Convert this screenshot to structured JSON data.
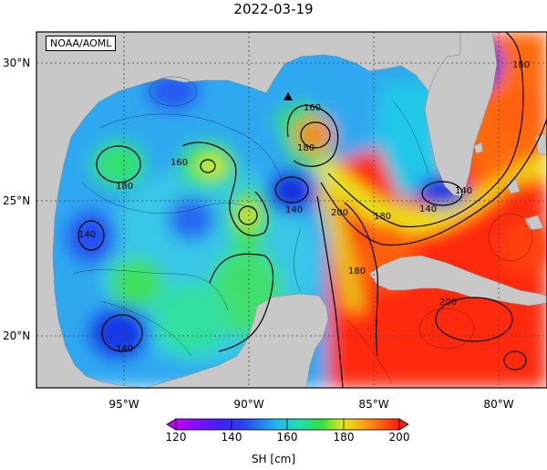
{
  "title": "2022-03-19",
  "source_label": "NOAA/AOML",
  "lat_labels": [
    "30°N",
    "25°N",
    "20°N"
  ],
  "lon_labels": [
    "95°W",
    "90°W",
    "85°W",
    "80°W"
  ],
  "colorbar": {
    "ticks": [
      "120",
      "140",
      "160",
      "180",
      "200"
    ],
    "label": "SH [cm]",
    "range": [
      120,
      200
    ]
  },
  "contour_labels": [
    "160",
    "160",
    "180",
    "180",
    "140",
    "140",
    "140",
    "140",
    "180",
    "200",
    "180",
    "140",
    "200",
    "180"
  ],
  "colors": {
    "land": "#c8c8c8",
    "c120": "#c000ff",
    "c140": "#2840f0",
    "c160": "#20d8e0",
    "c170": "#18e070",
    "c180": "#e8e818",
    "c190": "#ff8a10",
    "c200": "#ff1a10"
  }
}
